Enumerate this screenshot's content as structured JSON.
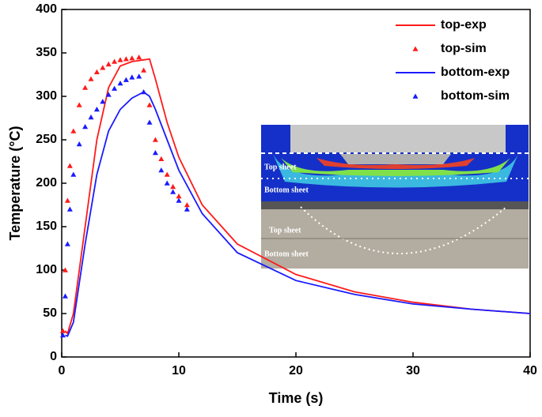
{
  "chart_data": {
    "type": "line",
    "xlabel": "Time (s)",
    "ylabel": "Temperature (°C)",
    "xlim": [
      0,
      40
    ],
    "ylim": [
      0,
      400
    ],
    "xticks": [
      0,
      10,
      20,
      30,
      40
    ],
    "yticks": [
      0,
      50,
      100,
      150,
      200,
      250,
      300,
      350,
      400
    ],
    "legend": "upper right",
    "series": [
      {
        "name": "top-exp",
        "color": "#ff1a1a",
        "style": "line",
        "x": [
          0.3,
          0.5,
          1,
          2,
          3,
          4,
          5,
          6,
          7,
          7.5,
          8,
          9,
          10,
          12,
          15,
          20,
          25,
          30,
          35,
          40
        ],
        "values": [
          30,
          27,
          50,
          150,
          250,
          310,
          335,
          340,
          342,
          343,
          320,
          270,
          230,
          175,
          130,
          95,
          75,
          63,
          55,
          50
        ]
      },
      {
        "name": "top-sim",
        "color": "#ff1a1a",
        "style": "marker",
        "x": [
          0.1,
          0.3,
          0.5,
          0.7,
          1,
          1.5,
          2,
          2.5,
          3,
          3.5,
          4,
          4.5,
          5,
          5.5,
          6,
          6.6,
          7,
          7.5,
          8,
          8.5,
          9,
          9.5,
          10,
          10.7
        ],
        "values": [
          30,
          100,
          180,
          220,
          260,
          290,
          310,
          320,
          328,
          333,
          337,
          340,
          342,
          343,
          344,
          345,
          330,
          290,
          250,
          228,
          210,
          196,
          185,
          175
        ]
      },
      {
        "name": "bottom-exp",
        "color": "#1a1aff",
        "style": "line",
        "x": [
          0.3,
          0.5,
          1,
          2,
          3,
          4,
          5,
          6,
          7,
          7.5,
          8,
          9,
          10,
          12,
          15,
          20,
          25,
          30,
          35,
          40
        ],
        "values": [
          25,
          24,
          40,
          130,
          210,
          260,
          285,
          298,
          305,
          300,
          285,
          250,
          215,
          165,
          120,
          88,
          72,
          61,
          55,
          50
        ]
      },
      {
        "name": "bottom-sim",
        "color": "#1a1aff",
        "style": "marker",
        "x": [
          0.1,
          0.3,
          0.5,
          0.7,
          1,
          1.5,
          2,
          2.5,
          3,
          3.5,
          4,
          4.5,
          5,
          5.5,
          6,
          6.6,
          7,
          7.5,
          8,
          8.5,
          9,
          9.5,
          10,
          10.7
        ],
        "values": [
          25,
          70,
          130,
          170,
          210,
          245,
          265,
          276,
          285,
          294,
          302,
          309,
          315,
          319,
          322,
          323,
          305,
          270,
          235,
          215,
          200,
          190,
          180,
          170
        ]
      }
    ],
    "annotations": [
      "Top sheet",
      "Bottom sheet",
      "Top sheet",
      "Bottom sheet"
    ]
  }
}
